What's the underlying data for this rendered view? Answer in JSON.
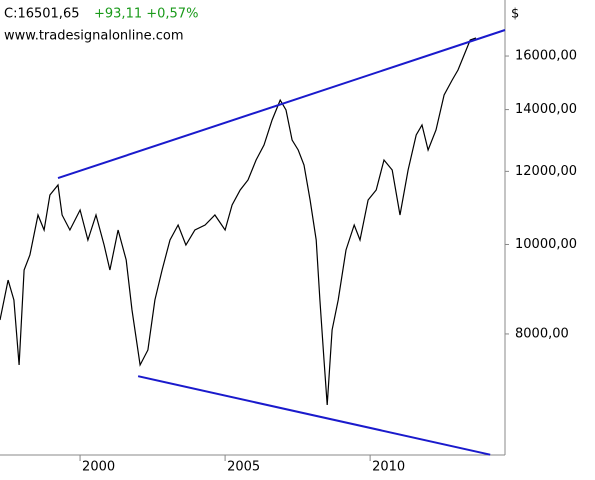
{
  "chart_data": {
    "type": "line",
    "title": "C:16501,65",
    "change": "+93,11 +0,57%",
    "change_color": "#1a9a1a",
    "source": "www.tradesignalonline.com",
    "unit": "$",
    "log_y": true,
    "grid": false,
    "xlim": [
      1997.24,
      2014.65
    ],
    "xticks": [
      2000,
      2005,
      2010
    ],
    "ylim": [
      5915,
      18400
    ],
    "yticks": [
      {
        "value": 8000,
        "label": "8000,00"
      },
      {
        "value": 10000,
        "label": "10000,00"
      },
      {
        "value": 12000,
        "label": "12000,00"
      },
      {
        "value": 14000,
        "label": "14000,00"
      },
      {
        "value": 16000,
        "label": "16000,00"
      }
    ],
    "series": [
      {
        "color": "#000000",
        "x": [
          1997.24,
          1997.52,
          1997.72,
          1997.9,
          1998.07,
          1998.27,
          1998.55,
          1998.76,
          1998.96,
          1999.24,
          1999.38,
          1999.65,
          2000.0,
          2000.27,
          2000.55,
          2000.83,
          2001.03,
          2001.31,
          2001.59,
          2001.79,
          2002.07,
          2002.34,
          2002.58,
          2002.83,
          2003.1,
          2003.38,
          2003.65,
          2003.96,
          2004.31,
          2004.65,
          2005.0,
          2005.24,
          2005.52,
          2005.79,
          2006.07,
          2006.34,
          2006.62,
          2006.9,
          2007.1,
          2007.31,
          2007.52,
          2007.72,
          2007.93,
          2008.14,
          2008.27,
          2008.41,
          2008.52,
          2008.69,
          2008.9,
          2009.17,
          2009.45,
          2009.65,
          2009.93,
          2010.21,
          2010.48,
          2010.76,
          2011.03,
          2011.31,
          2011.59,
          2011.79,
          2012.0,
          2012.27,
          2012.55,
          2012.83,
          2013.03,
          2013.24,
          2013.45,
          2013.65
        ],
        "values": [
          8284,
          9150,
          8707,
          7403,
          9384,
          9740,
          10763,
          10368,
          11314,
          11600,
          10763,
          10368,
          10897,
          10112,
          10763,
          9987,
          9384,
          10368,
          9621,
          8493,
          7403,
          7686,
          8707,
          9384,
          10112,
          10498,
          9987,
          10368,
          10498,
          10763,
          10368,
          11034,
          11456,
          11744,
          12344,
          12816,
          13640,
          14336,
          13984,
          12976,
          12656,
          12192,
          11173,
          10112,
          8707,
          7498,
          6701,
          8080,
          8707,
          9862,
          10498,
          10112,
          11173,
          11456,
          12344,
          12042,
          10763,
          12042,
          13139,
          13470,
          12656,
          13304,
          14517,
          15070,
          15451,
          16040,
          16651,
          16735
        ]
      },
      {
        "color": "#1a1acc",
        "x": [
          1999.24,
          2014.65
        ],
        "values": [
          11800,
          17072
        ]
      },
      {
        "color": "#1a1acc",
        "x": [
          2002.0,
          2014.14
        ],
        "values": [
          7200,
          5920
        ]
      }
    ]
  }
}
